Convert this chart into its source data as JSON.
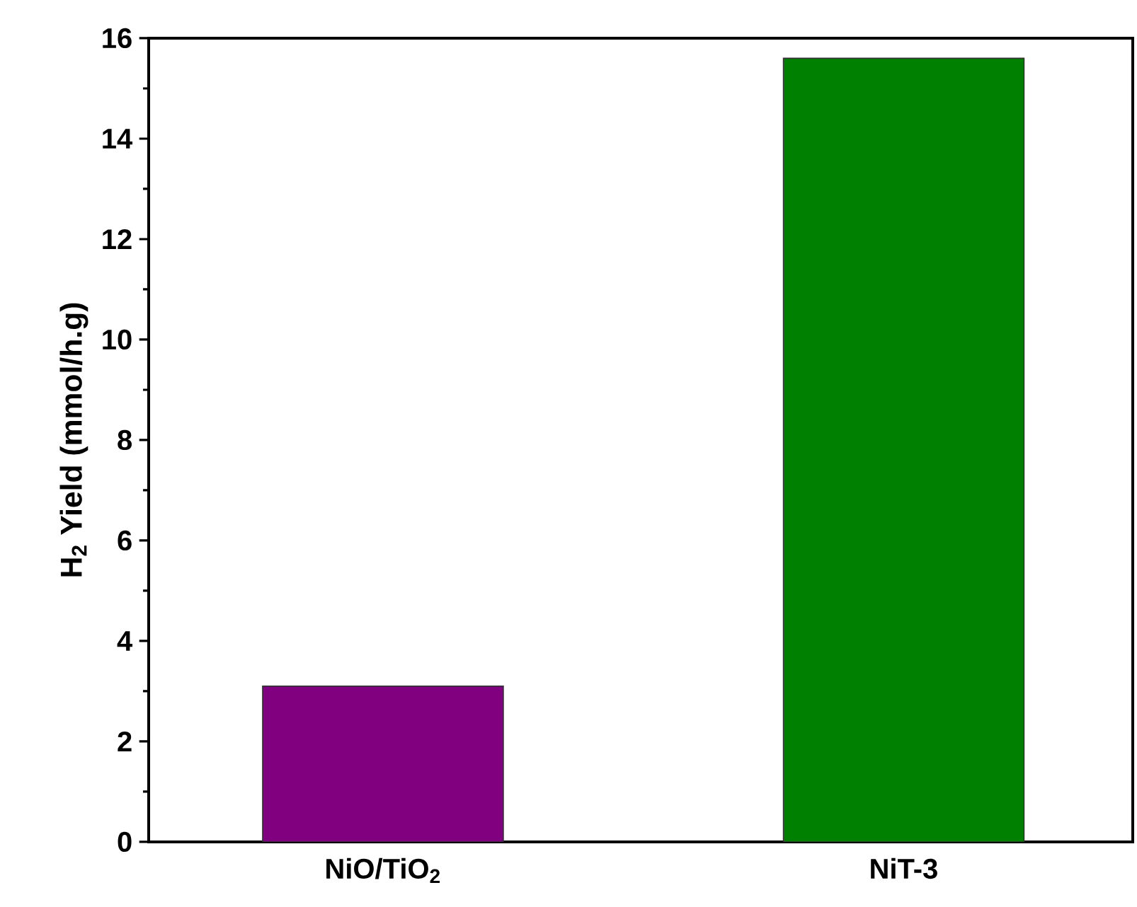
{
  "chart_data": {
    "type": "bar",
    "ylabel": "H$_{2}$ Yield (mmol/h.g)",
    "categories": [
      "NiO/TiO$_{2}$",
      "NiT-3"
    ],
    "values": [
      3.1,
      15.6
    ],
    "colors": [
      "#800080",
      "#008000"
    ],
    "ylim": [
      0,
      16
    ],
    "yticks": [
      0,
      2,
      4,
      6,
      8,
      10,
      12,
      14,
      16
    ],
    "grid": false
  }
}
